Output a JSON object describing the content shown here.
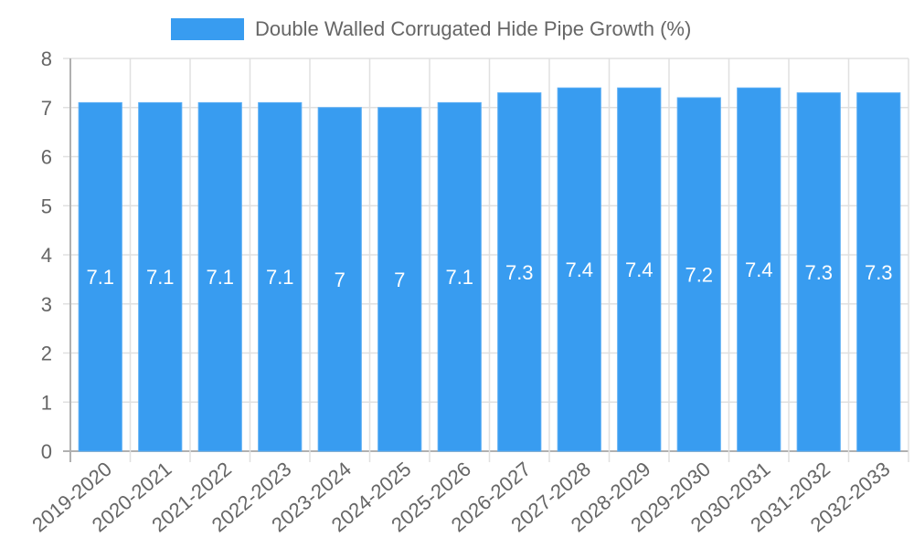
{
  "chart_data": {
    "type": "bar",
    "title": "",
    "legend": [
      {
        "label": "Double Walled Corrugated Hide Pipe Growth (%)",
        "color": "#389cf0"
      }
    ],
    "legend_position": "top",
    "categories": [
      "2019-2020",
      "2020-2021",
      "2021-2022",
      "2022-2023",
      "2023-2024",
      "2024-2025",
      "2025-2026",
      "2026-2027",
      "2027-2028",
      "2028-2029",
      "2029-2030",
      "2030-2031",
      "2031-2032",
      "2032-2033"
    ],
    "series": [
      {
        "name": "Double Walled Corrugated Hide Pipe Growth (%)",
        "values": [
          7.1,
          7.1,
          7.1,
          7.1,
          7,
          7,
          7.1,
          7.3,
          7.4,
          7.4,
          7.2,
          7.4,
          7.3,
          7.3
        ]
      }
    ],
    "data_labels": [
      "7.1",
      "7.1",
      "7.1",
      "7.1",
      "7",
      "7",
      "7.1",
      "7.3",
      "7.4",
      "7.4",
      "7.2",
      "7.4",
      "7.3",
      "7.3"
    ],
    "xlabel": "",
    "ylabel": "",
    "ylim": [
      0,
      8
    ],
    "yticks": [
      "0",
      "1",
      "2",
      "3",
      "4",
      "5",
      "6",
      "7",
      "8"
    ],
    "grid": true,
    "bar_color": "#389cf0"
  }
}
